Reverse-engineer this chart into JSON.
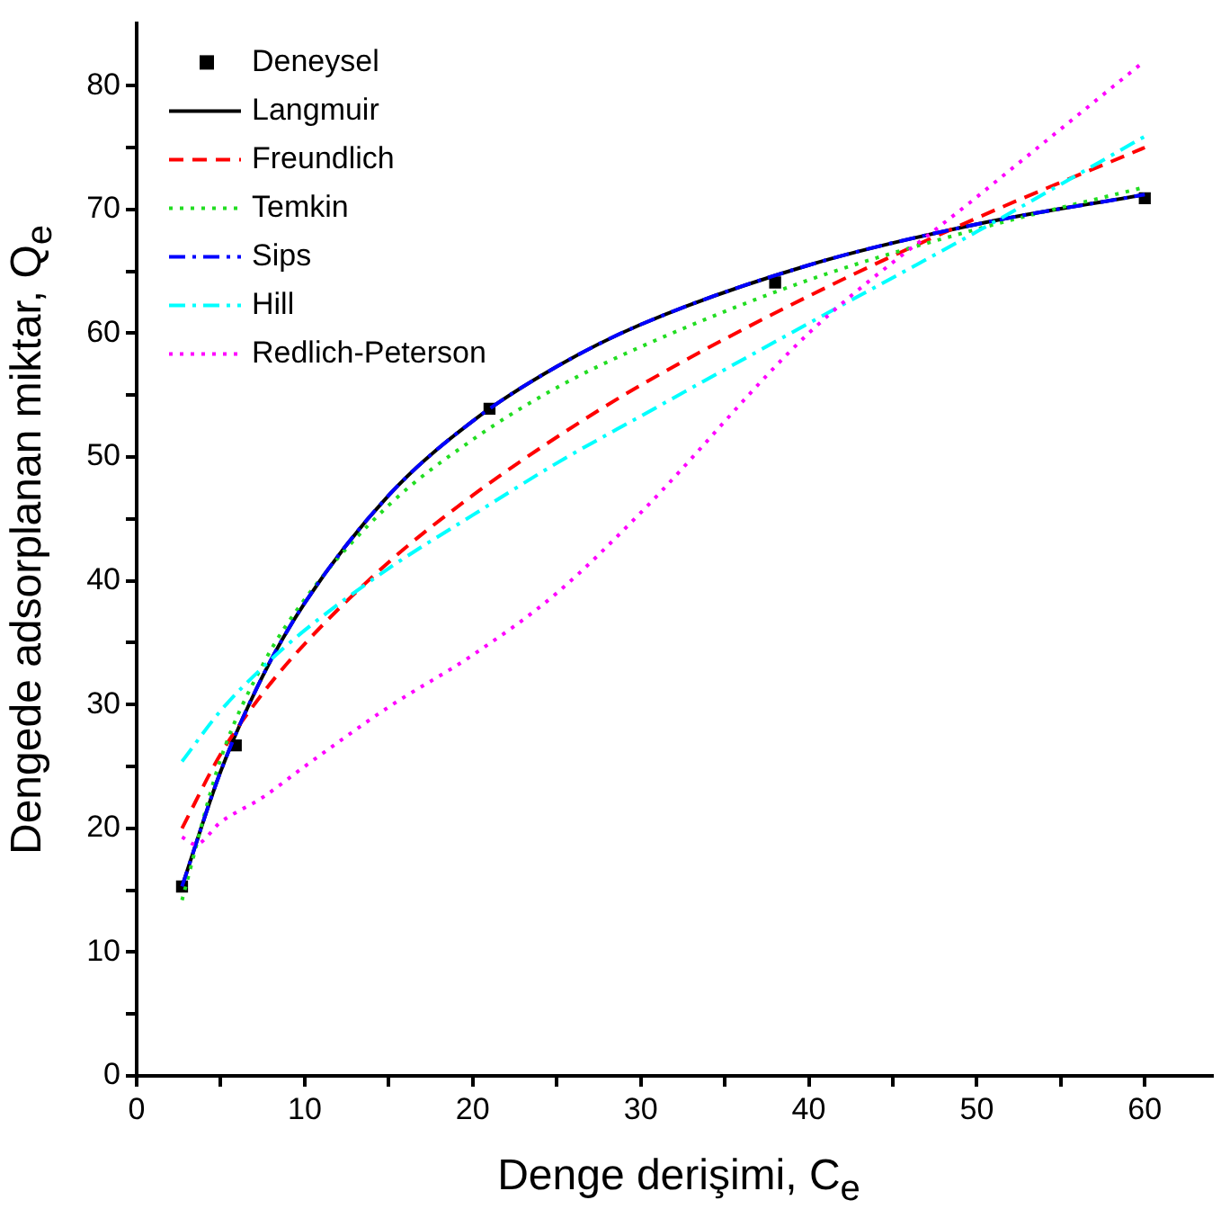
{
  "chart_data": {
    "type": "line",
    "xlabel": "Denge derişimi, C$_{e}$",
    "ylabel": "Dengede adsorplanan miktar, Q$_{e}$",
    "xlim": [
      0,
      64
    ],
    "ylim": [
      0,
      85
    ],
    "xticks": [
      0,
      {
        "value": 5,
        "label": null
      },
      10,
      {
        "value": 15,
        "label": null
      },
      20,
      {
        "value": 25,
        "label": null
      },
      30,
      {
        "value": 35,
        "label": null
      },
      40,
      {
        "value": 45,
        "label": null
      },
      50,
      {
        "value": 55,
        "label": null
      },
      60
    ],
    "yticks": [
      0,
      {
        "value": 5,
        "label": null
      },
      10,
      {
        "value": 15,
        "label": null
      },
      20,
      {
        "value": 25,
        "label": null
      },
      30,
      {
        "value": 35,
        "label": null
      },
      40,
      {
        "value": 45,
        "label": null
      },
      50,
      {
        "value": 55,
        "label": null
      },
      60,
      {
        "value": 65,
        "label": null
      },
      70,
      {
        "value": 75,
        "label": null
      },
      80
    ],
    "grid": false,
    "legend": "top left",
    "series": [
      {
        "name": "Deneysel",
        "type": "scatter",
        "marker": "square",
        "color": "#000000",
        "x": [
          2.7,
          5.9,
          21,
          38,
          60
        ],
        "values": [
          15.3,
          26.7,
          53.9,
          64.1,
          70.9
        ]
      },
      {
        "name": "Langmuir",
        "line_style": "solid",
        "marker": "none",
        "color": "#000000",
        "x": [
          2.7,
          5,
          7.5,
          10,
          15,
          20,
          25,
          30,
          40,
          50,
          60
        ],
        "values": [
          15.3,
          24.6,
          32.3,
          38.2,
          46.9,
          52.9,
          57.3,
          60.7,
          65.5,
          68.8,
          71.2
        ]
      },
      {
        "name": "Freundlich",
        "line_style": "dashed",
        "marker": "none",
        "color": "#ff0000",
        "x": [
          2.7,
          5,
          7.5,
          10,
          15,
          20,
          25,
          30,
          40,
          50,
          60
        ],
        "values": [
          20.0,
          26.0,
          30.9,
          34.9,
          41.5,
          46.9,
          51.6,
          55.8,
          63.0,
          69.3,
          75.0
        ]
      },
      {
        "name": "Temkin",
        "line_style": "dotted",
        "marker": "none",
        "color": "#22dd22",
        "x": [
          2.7,
          5,
          7.5,
          10,
          15,
          20,
          25,
          30,
          40,
          50,
          60
        ],
        "values": [
          14.2,
          25.6,
          33.2,
          38.5,
          46.1,
          51.4,
          55.6,
          58.9,
          64.3,
          68.4,
          71.8
        ]
      },
      {
        "name": "Sips",
        "line_style": "dashdot",
        "marker": "none",
        "color": "#0000ff",
        "x": [
          2.7,
          5,
          7.5,
          10,
          15,
          20,
          25,
          30,
          40,
          50,
          60
        ],
        "values": [
          15.3,
          24.6,
          32.3,
          38.2,
          46.9,
          52.9,
          57.3,
          60.7,
          65.5,
          68.8,
          71.2
        ]
      },
      {
        "name": "Hill",
        "line_style": "dashdot",
        "marker": "none",
        "color": "#00ffff",
        "x": [
          2.7,
          5,
          7.5,
          10,
          15,
          20,
          25,
          30,
          40,
          50,
          60
        ],
        "values": [
          25.4,
          29.5,
          33.0,
          36.0,
          41.0,
          45.3,
          49.5,
          53.3,
          60.8,
          68.2,
          75.9
        ]
      },
      {
        "name": "Redlich-Peterson",
        "line_style": "dotted",
        "marker": "none",
        "color": "#ff00ff",
        "x": [
          2.7,
          3.5,
          5,
          7.5,
          10,
          15,
          20,
          25,
          30,
          40,
          50,
          60
        ],
        "values": [
          19.3,
          18.7,
          20.5,
          22.5,
          25.0,
          29.8,
          34.0,
          39.0,
          45.5,
          60.0,
          71.0,
          82.0
        ]
      }
    ]
  }
}
